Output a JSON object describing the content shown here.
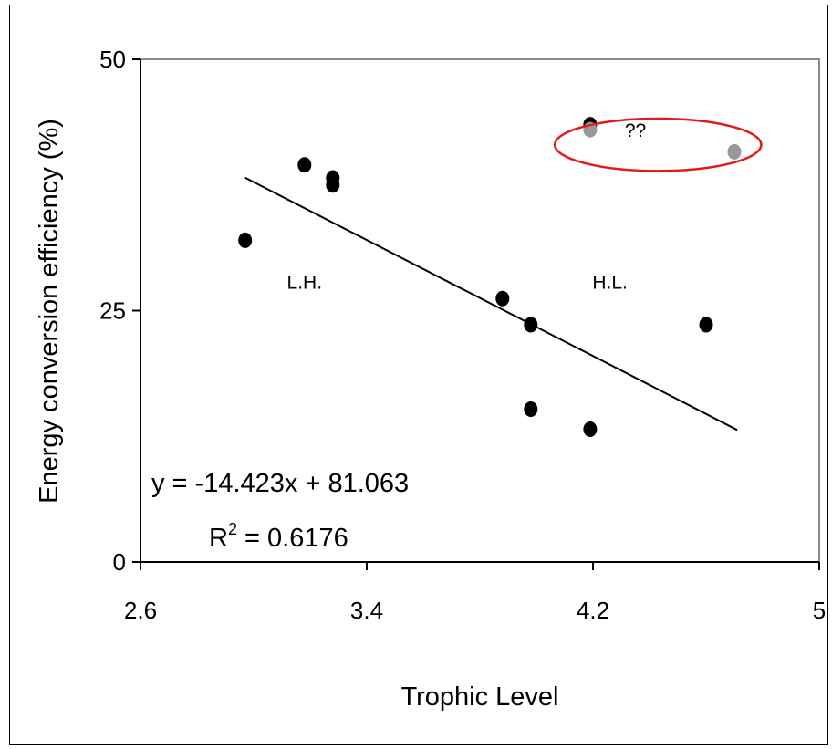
{
  "chart_data": {
    "type": "scatter",
    "xlabel": "Trophic Level",
    "ylabel": "Energy conversion efficiency (%)",
    "xlim": [
      2.6,
      5
    ],
    "ylim": [
      0,
      50
    ],
    "x_ticks": [
      2.6,
      3.4,
      4.2,
      5
    ],
    "x_tick_labels": [
      "2.6",
      "3.4",
      "4.2",
      "5"
    ],
    "y_ticks": [
      0,
      25,
      50
    ],
    "y_tick_labels": [
      "0",
      "25",
      "50"
    ],
    "grid": false,
    "legend": "none",
    "series": [
      {
        "color": "#000000",
        "points": [
          {
            "x": 2.97,
            "y": 32.0
          },
          {
            "x": 3.18,
            "y": 39.5
          },
          {
            "x": 3.28,
            "y": 38.2
          },
          {
            "x": 3.28,
            "y": 37.5
          },
          {
            "x": 3.88,
            "y": 26.2
          },
          {
            "x": 3.98,
            "y": 23.6
          },
          {
            "x": 3.98,
            "y": 15.2
          },
          {
            "x": 4.19,
            "y": 13.2
          },
          {
            "x": 4.19,
            "y": 43.5
          },
          {
            "x": 4.6,
            "y": 23.6
          }
        ]
      },
      {
        "color": "#999999",
        "points": [
          {
            "x": 4.19,
            "y": 43.0
          },
          {
            "x": 4.7,
            "y": 40.8
          }
        ]
      }
    ],
    "trendline": {
      "slope": -14.423,
      "intercept": 81.063,
      "x_range": [
        2.97,
        4.71
      ],
      "color": "#000000"
    },
    "equation": {
      "line1": "y = -14.423x + 81.063",
      "r2_prefix": "R",
      "r2_sup": "2",
      "r2_suffix": " = 0.6176"
    },
    "annotations": [
      {
        "text": "L.H.",
        "x": 3.18,
        "y": 27.2
      },
      {
        "text": "H.L.",
        "x": 4.26,
        "y": 27.2
      },
      {
        "text": "??",
        "x": 4.35,
        "y": 42.3
      }
    ],
    "highlight_ellipse": {
      "color": "#e31a1c",
      "cx": 4.43,
      "cy": 41.5,
      "rx": 0.365,
      "ry": 2.6
    }
  }
}
